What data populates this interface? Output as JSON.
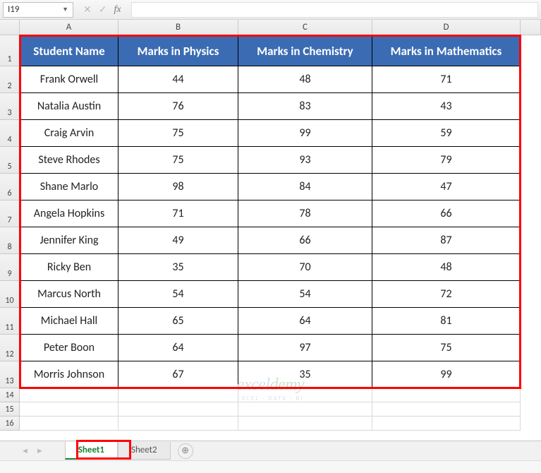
{
  "formula_bar": {
    "cell_ref": "I19",
    "fx_label": "fx"
  },
  "columns": [
    "A",
    "B",
    "C",
    "D"
  ],
  "table": {
    "header_bg": "#3b6cb3",
    "header_fg": "#ffffff",
    "headers": [
      "Student Name",
      "Marks in Physics",
      "Marks in Chemistry",
      "Marks in Mathematics"
    ],
    "rows": [
      [
        "Frank Orwell",
        "44",
        "48",
        "71"
      ],
      [
        "Natalia Austin",
        "76",
        "83",
        "43"
      ],
      [
        "Craig Arvin",
        "75",
        "99",
        "59"
      ],
      [
        "Steve Rhodes",
        "75",
        "93",
        "79"
      ],
      [
        "Shane Marlo",
        "98",
        "84",
        "47"
      ],
      [
        "Angela Hopkins",
        "71",
        "78",
        "66"
      ],
      [
        "Jennifer King",
        "49",
        "66",
        "87"
      ],
      [
        "Ricky Ben",
        "35",
        "70",
        "48"
      ],
      [
        "Marcus North",
        "54",
        "54",
        "72"
      ],
      [
        "Michael Hall",
        "65",
        "64",
        "81"
      ],
      [
        "Peter Boon",
        "64",
        "97",
        "75"
      ],
      [
        "Morris Johnson",
        "67",
        "35",
        "99"
      ]
    ]
  },
  "extra_row_headers": [
    "14",
    "15",
    "16"
  ],
  "tabs": {
    "items": [
      {
        "label": "Sheet1",
        "active": true
      },
      {
        "label": "Sheet2",
        "active": false
      }
    ]
  },
  "watermark": {
    "line1_a": "excel",
    "line1_b": "demy",
    "line2": "EXCEL · DATA · BI"
  },
  "highlight": {
    "table_rect_color": "#ff0000",
    "tab_rect_color": "#ff0000"
  }
}
